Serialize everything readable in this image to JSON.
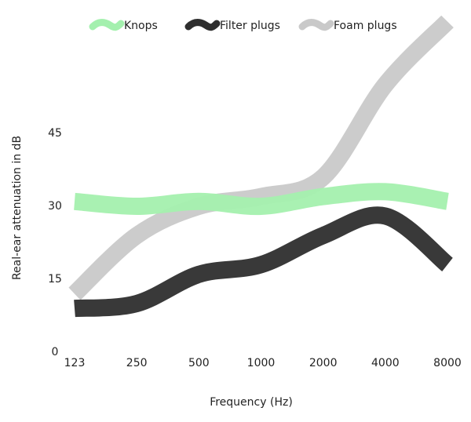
{
  "chart_data": {
    "type": "line",
    "y_label": "Real-ear attenuation in dB",
    "x_label": "Frequency (Hz)",
    "categories": [
      "123",
      "250",
      "500",
      "1000",
      "2000",
      "4000",
      "8000"
    ],
    "series": [
      {
        "name": "Knops",
        "color": "#a4f0ae",
        "values": [
          31,
          30,
          31,
          30,
          32,
          33,
          31
        ]
      },
      {
        "name": "Filter plugs",
        "color": "#2e2e2e",
        "values": [
          9,
          10,
          16,
          18,
          24,
          28,
          18
        ]
      },
      {
        "name": "Foam plugs",
        "color": "#c9c9c9",
        "values": [
          12,
          24,
          30,
          32,
          36,
          55,
          68
        ]
      }
    ],
    "ylim": [
      0,
      70
    ],
    "yticks": [
      0,
      15,
      30,
      45
    ],
    "grid": false
  }
}
